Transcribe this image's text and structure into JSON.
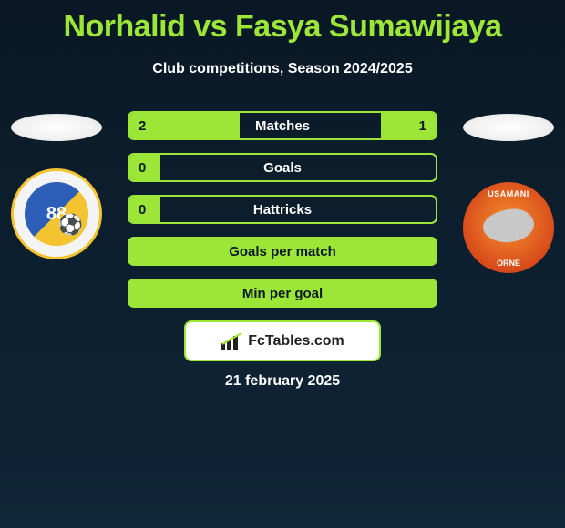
{
  "title": "Norhalid vs Fasya Sumawijaya",
  "subtitle": "Club competitions, Season 2024/2025",
  "date": "21 february 2025",
  "brand": "FcTables.com",
  "colors": {
    "accent": "#9ce638",
    "bg_top": "#0a1825",
    "bg_bottom": "#0f2638",
    "white": "#ffffff"
  },
  "players": {
    "left": {
      "name": "Norhalid",
      "badge_number": "88",
      "badge_colors": {
        "outer_border": "#f4c430",
        "inner_a": "#2d5fb8",
        "inner_b": "#f4c430"
      }
    },
    "right": {
      "name": "Fasya Sumawijaya",
      "badge_top_text": "USAMANI",
      "badge_bottom_text": "ORNE",
      "badge_colors": {
        "base": "#d84a1a"
      }
    }
  },
  "stats": [
    {
      "label": "Matches",
      "left_value": "2",
      "right_value": "1",
      "left_fill_pct": 36,
      "right_fill_pct": 18,
      "label_color": "light",
      "right_value_color": "dark"
    },
    {
      "label": "Goals",
      "left_value": "0",
      "right_value": "",
      "left_fill_pct": 10,
      "right_fill_pct": 0,
      "label_color": "light",
      "right_value_color": "light"
    },
    {
      "label": "Hattricks",
      "left_value": "0",
      "right_value": "",
      "left_fill_pct": 10,
      "right_fill_pct": 0,
      "label_color": "light",
      "right_value_color": "light"
    },
    {
      "label": "Goals per match",
      "left_value": "",
      "right_value": "",
      "full": true,
      "label_color": "dark"
    },
    {
      "label": "Min per goal",
      "left_value": "",
      "right_value": "",
      "full": true,
      "label_color": "dark"
    }
  ]
}
